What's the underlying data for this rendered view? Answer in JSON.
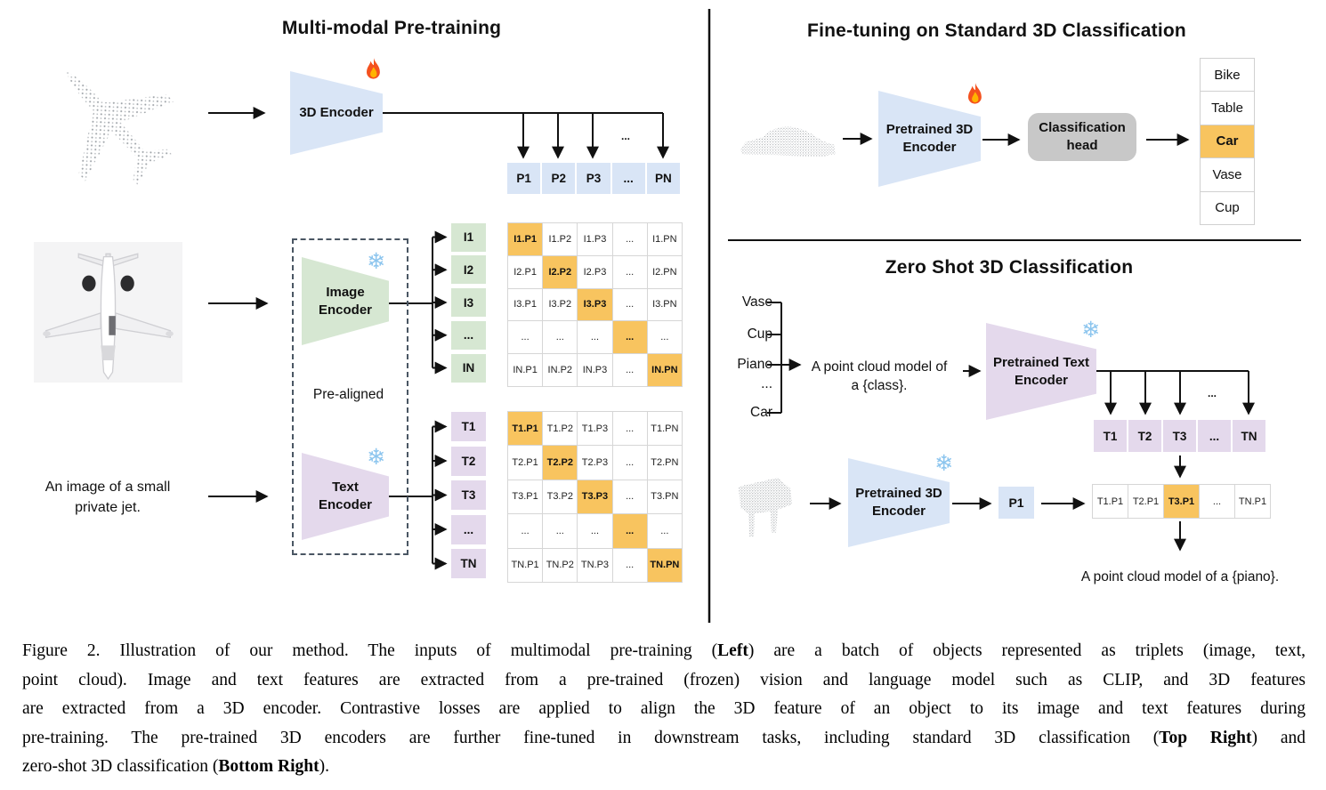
{
  "left": {
    "title": "Multi-modal Pre-training",
    "encoder_3d_label": "3D Encoder",
    "p_row": [
      "P1",
      "P2",
      "P3",
      "...",
      "PN"
    ],
    "p_row_ellipsis": "...",
    "image_encoder_label": [
      "Image",
      "Encoder"
    ],
    "text_encoder_label": [
      "Text",
      "Encoder"
    ],
    "pre_aligned_label": "Pre-aligned",
    "image_caption": [
      "An image of a small",
      "private jet."
    ],
    "i_col": [
      "I1",
      "I2",
      "I3",
      "...",
      "IN"
    ],
    "t_col": [
      "T1",
      "T2",
      "T3",
      "...",
      "TN"
    ],
    "i_matrix": [
      [
        "I1.P1",
        "I1.P2",
        "I1.P3",
        "...",
        "I1.PN"
      ],
      [
        "I2.P1",
        "I2.P2",
        "I2.P3",
        "...",
        "I2.PN"
      ],
      [
        "I3.P1",
        "I3.P2",
        "I3.P3",
        "...",
        "I3.PN"
      ],
      [
        "...",
        "...",
        "...",
        "...",
        "..."
      ],
      [
        "IN.P1",
        "IN.P2",
        "IN.P3",
        "...",
        "IN.PN"
      ]
    ],
    "t_matrix": [
      [
        "T1.P1",
        "T1.P2",
        "T1.P3",
        "...",
        "T1.PN"
      ],
      [
        "T2.P1",
        "T2.P2",
        "T2.P3",
        "...",
        "T2.PN"
      ],
      [
        "T3.P1",
        "T3.P2",
        "T3.P3",
        "...",
        "T3.PN"
      ],
      [
        "...",
        "...",
        "...",
        "...",
        "..."
      ],
      [
        "TN.P1",
        "TN.P2",
        "TN.P3",
        "...",
        "TN.PN"
      ]
    ]
  },
  "top_right": {
    "title": "Fine-tuning on Standard 3D Classification",
    "encoder_label": [
      "Pretrained 3D",
      "Encoder"
    ],
    "head_label": [
      "Classification",
      "head"
    ],
    "classes": [
      "Bike",
      "Table",
      "Car",
      "Vase",
      "Cup"
    ],
    "predicted_class": "Car"
  },
  "bottom_right": {
    "title": "Zero Shot 3D Classification",
    "candidate_classes": [
      "Vase",
      "Cup",
      "Piano",
      "...",
      "Car"
    ],
    "prompt": [
      "A point cloud model of",
      "a {class}."
    ],
    "text_encoder_label": [
      "Pretrained Text",
      "Encoder"
    ],
    "t_row": [
      "T1",
      "T2",
      "T3",
      "...",
      "TN"
    ],
    "row_ellipsis": "...",
    "encoder_3d_label": [
      "Pretrained 3D",
      "Encoder"
    ],
    "p_cell": "P1",
    "result_row": [
      "T1.P1",
      "T2.P1",
      "T3.P1",
      "...",
      "TN.P1"
    ],
    "predicted_cell": "T3.P1",
    "result_text": "A point cloud model of a {piano}."
  },
  "caption": {
    "lines": [
      [
        {
          "t": "Figure 2. Illustration of our method. The inputs of multimodal pre-training ("
        },
        {
          "t": "Left",
          "b": true
        },
        {
          "t": ") are a batch of objects represented as triplets (image, text,"
        }
      ],
      [
        {
          "t": "point cloud).  Image and text features are extracted from a pre-trained (frozen) vision and language model such as CLIP, and 3D features"
        }
      ],
      [
        {
          "t": "are extracted from a 3D encoder.  Contrastive losses are applied to align the 3D feature of an object to its image and text features during"
        }
      ],
      [
        {
          "t": "pre-training.  The pre-trained 3D encoders are further fine-tuned in downstream tasks, including standard 3D classification ("
        },
        {
          "t": "Top Right",
          "b": true
        },
        {
          "t": ") and"
        }
      ],
      [
        {
          "t": "zero-shot 3D classification ("
        },
        {
          "t": "Bottom Right",
          "b": true
        },
        {
          "t": ")."
        }
      ]
    ]
  },
  "icons": {
    "fire": "fire-icon",
    "snowflake": "❄"
  },
  "colors": {
    "blue": "#d9e5f6",
    "green": "#d6e7d2",
    "purple": "#e4d9ec",
    "orange": "#f8c45f",
    "head_gray": "#c8c8c8",
    "grid_line": "#d6d6d6",
    "list_line": "#d0d0d0",
    "dash": "#4a5663",
    "arrow": "#111111",
    "point_cloud": "#9ea3a8"
  }
}
